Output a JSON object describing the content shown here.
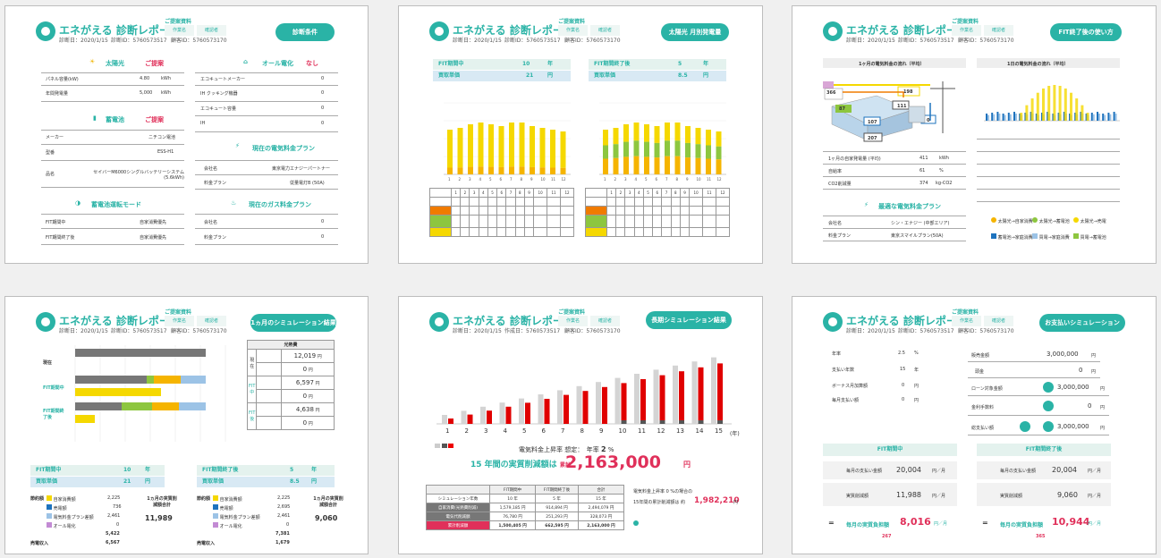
{
  "common": {
    "title": "エネがえる 診断レポート",
    "tag": "ご提案資料",
    "box1": "作業名",
    "box2": "確認者",
    "date": "診断日：2020/1/15",
    "num1": "診断ID：5760573517",
    "num2": "顧客ID：5760573170",
    "num1b": "作成日：5760573517",
    "num2b": "顧客ID：5760573170"
  },
  "p1": {
    "button": "診断条件",
    "solar": {
      "label": "太陽光",
      "status": "ご提案",
      "rows": [
        [
          "パネル容量(kW)",
          "4.80",
          "kWh"
        ],
        [
          "年間発電量",
          "5,000",
          "kWh"
        ]
      ]
    },
    "allelec": {
      "label": "オール電化",
      "status": "なし",
      "rows": [
        [
          "エコキュートメーカー",
          "0"
        ],
        [
          "IH クッキング機器",
          "0"
        ],
        [
          "エコキュート容量",
          "0"
        ],
        [
          "IH",
          "0"
        ]
      ]
    },
    "battery": {
      "label": "蓄電池",
      "status": "ご提案",
      "rows": [
        [
          "メーカー",
          "ニチコン電池"
        ],
        [
          "型番",
          "ESS-H1"
        ],
        [
          "品名",
          "セイバーM6000シングルバッテリーシステム(5.6kWh)"
        ]
      ]
    },
    "mode": {
      "label": "蓄電池運転モード",
      "rows": [
        [
          "FIT期間中",
          "自家消費優先"
        ],
        [
          "FIT期間終了後",
          "自家消費優先"
        ]
      ]
    },
    "plan": {
      "label": "現在の電気料金プラン",
      "rows": [
        [
          "会社名",
          "東京電力エナジーパートナー"
        ],
        [
          "料金プラン",
          "従量電灯B (50A)"
        ]
      ]
    },
    "gas": {
      "label": "現在のガス料金プラン",
      "rows": [
        [
          "会社名",
          "0"
        ],
        [
          "料金プラン",
          "0"
        ]
      ]
    }
  },
  "p2": {
    "button": "太陽光 月別発電量",
    "left": {
      "h1": "FIT期間中",
      "v1": "10",
      "u1": "年",
      "h2": "買取単価",
      "v2": "21",
      "u2": "円"
    },
    "right": {
      "h1": "FIT期間終了後",
      "v1": "5",
      "u1": "年",
      "h2": "買取単価",
      "v2": "8.5",
      "u2": "円"
    },
    "months": [
      "1",
      "2",
      "3",
      "4",
      "5",
      "6",
      "7",
      "8",
      "9",
      "10",
      "11",
      "12"
    ],
    "unit": "(kWh)",
    "month_unit": "(月)"
  },
  "p3": {
    "button": "FIT終了後の使い方",
    "left_title": "1ヶ月の電気料金の流れ（平均）",
    "right_title": "1日の電気料金の流れ（平均）",
    "values": {
      "a": "366",
      "b": "198",
      "c": "111",
      "d": "87",
      "e": "107",
      "f": "0",
      "g": "207"
    },
    "plan_title": "最適な電気料金プラン",
    "rows_left": [
      [
        "1ヶ月の自家発電量 (平均)",
        "411",
        "kWh"
      ],
      [
        "自給率",
        "61",
        "%"
      ],
      [
        "CO2削減量",
        "374",
        "kg-CO2"
      ]
    ],
    "plan_rows": [
      [
        "会社名",
        "シン・エナジー (中部エリア)"
      ],
      [
        "料金プラン",
        "東京スマイルプラン(50A)"
      ]
    ],
    "legend": [
      "太陽光→自家消費",
      "太陽光→蓄電池",
      "太陽光→売電",
      "蓄電池→家庭消費",
      "買電→家庭消費",
      "買電→蓄電池"
    ]
  },
  "p4": {
    "button": "1ヵ月のシミュレーション結果",
    "rows": [
      "現在",
      "FIT期間中",
      "FIT期間終了後"
    ],
    "side_title": "光熱費",
    "side": [
      [
        "12,019",
        "円"
      ],
      [
        "0",
        "円"
      ],
      [
        "6,597",
        "円"
      ],
      [
        "0",
        "円"
      ],
      [
        "4,638",
        "円"
      ],
      [
        "0",
        "円"
      ]
    ],
    "left": {
      "h1": "FIT期間中",
      "v1": "10",
      "u1": "年",
      "h2": "買取単価",
      "v2": "21",
      "u2": "円",
      "items": [
        [
          "自家消費額",
          "2,225",
          "円"
        ],
        [
          "売電額",
          "736",
          "円"
        ],
        [
          "電気料金プラン差額",
          "2,461",
          "円"
        ],
        [
          "オール電化",
          "0",
          "円"
        ]
      ],
      "subtotal": "5,422",
      "total": "11,989",
      "sale": "6,567",
      "total_label": "1ヵ月の実質削減額合計",
      "sale_label": "売電収入",
      "saving_label": "節約額"
    },
    "right": {
      "h1": "FIT期間終了後",
      "v1": "5",
      "u1": "年",
      "h2": "買取単価",
      "v2": "8.5",
      "u2": "円",
      "items": [
        [
          "自家消費額",
          "2,225",
          "円"
        ],
        [
          "売電額",
          "2,695",
          "円"
        ],
        [
          "電気料金プラン差額",
          "2,461",
          "円"
        ],
        [
          "オール電化",
          "0",
          "円"
        ]
      ],
      "subtotal": "7,381",
      "total": "9,060",
      "sale": "1,679",
      "total_label": "1ヵ月の実質削減額合計",
      "sale_label": "売電収入",
      "saving_label": "節約額"
    }
  },
  "p5": {
    "button": "長期シミュレーション結果",
    "years": [
      "1",
      "2",
      "3",
      "4",
      "5",
      "6",
      "7",
      "8",
      "9",
      "10",
      "11",
      "12",
      "13",
      "14",
      "15"
    ],
    "year_unit": "(年)",
    "rate_label": "電気料金上昇率 想定：　年率",
    "rate": "2",
    "rate_unit": "%",
    "summary_pre": "15 年間の実質削減額は",
    "summary_mid": "累計",
    "summary_value": "2,163,000",
    "summary_unit": "円",
    "table_head": [
      "",
      "FIT期間中",
      "FIT期間終了後",
      "合計"
    ],
    "table": [
      [
        "シミュレーション年数",
        "10 年",
        "5 年",
        "15 年"
      ],
      [
        "自家消費(光熱費削減)",
        "1,579,185 円",
        "914,894 円",
        "2,494,079 円"
      ],
      [
        "電気代削減額",
        "76,780 円",
        "251,293 円",
        "328,073 円"
      ],
      [
        "累計削減額",
        "1,500,405 円",
        "662,595 円",
        "2,163,000 円"
      ]
    ],
    "right_note": "電気料金上昇率 0 %の場合の",
    "right_note2": "15年間の累計削減額は 約",
    "right_value": "1,982,210",
    "right_unit": "円"
  },
  "p6": {
    "button": "お支払いシミュレーション",
    "left_rows": [
      [
        "年率",
        "2.5",
        "%"
      ],
      [
        "支払い年数",
        "15",
        "年"
      ],
      [
        "ボーナス月加算額",
        "0",
        "円"
      ],
      [
        "毎月支払い額",
        "0",
        "円"
      ]
    ],
    "right_rows": [
      [
        "販売金額",
        "3,000,000",
        "円"
      ],
      [
        "頭金",
        "0",
        "円"
      ],
      [
        "ローン対象金額",
        "3,000,000",
        "円"
      ],
      [
        "金利手数料",
        "0",
        "円"
      ],
      [
        "総支払い額",
        "3,000,000",
        "円"
      ]
    ],
    "left_head": "FIT期間中",
    "right_head": "FIT期間終了後",
    "left": {
      "monthly": "20,004",
      "saving": "11,988",
      "result": "8,016",
      "label1": "毎月の支払い金額",
      "label2": "実質削減額",
      "label3": "毎月の実質負担額",
      "unit": "円／月",
      "extra": "267"
    },
    "right": {
      "monthly": "20,004",
      "saving": "9,060",
      "result": "10,944",
      "label1": "毎月の支払い金額",
      "label2": "実質削減額",
      "label3": "毎月の実質負担額",
      "unit": "円／月",
      "extra": "365"
    }
  }
}
